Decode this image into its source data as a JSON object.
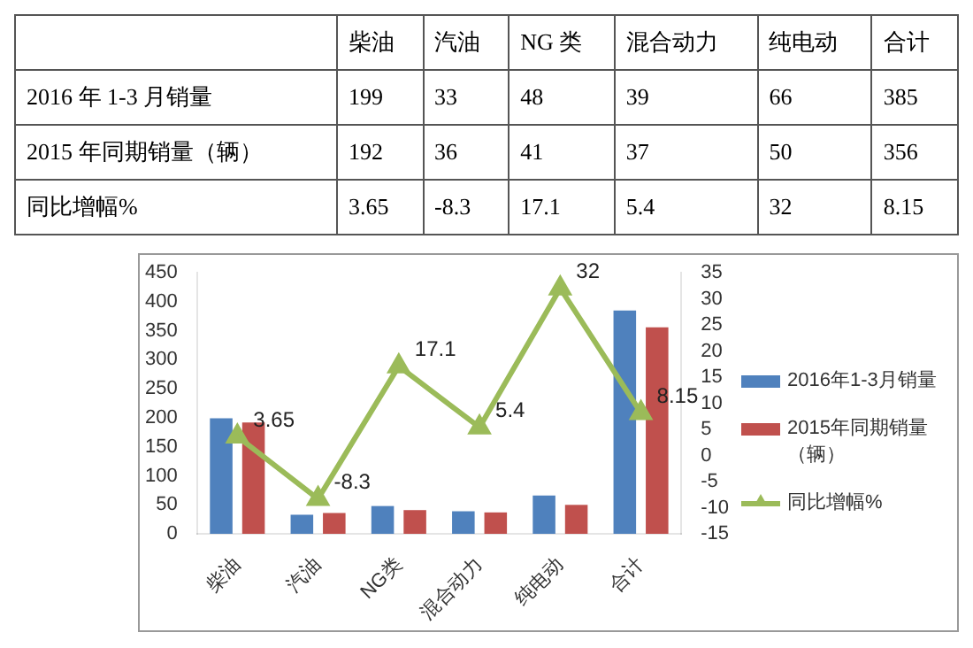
{
  "chart_data": [
    {
      "type": "other",
      "categories": [
        "柴油",
        "汽油",
        "NG 类",
        "混合动力",
        "纯电动",
        "合计"
      ],
      "series": [
        {
          "name": "2016 年 1-3 月销量",
          "values": [
            199,
            33,
            48,
            39,
            66,
            385
          ]
        },
        {
          "name": "2015 年同期销量（辆）",
          "values": [
            192,
            36,
            41,
            37,
            50,
            356
          ]
        },
        {
          "name": "同比增幅%",
          "values": [
            3.65,
            -8.3,
            17.1,
            5.4,
            32,
            8.15
          ]
        }
      ],
      "data_labels": true
    },
    {
      "type": "bar",
      "categories": [
        "柴油",
        "汽油",
        "NG类",
        "混合动力",
        "纯电动",
        "合计"
      ],
      "series": [
        {
          "name": "2016年1-3月销量",
          "color": "#4f81bd",
          "values": [
            199,
            33,
            48,
            39,
            66,
            385
          ]
        },
        {
          "name": "2015年同期销量（辆）",
          "color": "#c0504d",
          "values": [
            192,
            36,
            41,
            37,
            50,
            356
          ]
        },
        {
          "name": "同比增幅%",
          "type": "line",
          "axis": "y2",
          "color": "#9bbb59",
          "marker": "triangle",
          "values": [
            3.65,
            -8.3,
            17.1,
            5.4,
            32,
            8.15
          ],
          "value_labels": [
            "3.65",
            "-8.3",
            "17.1",
            "5.4",
            "32",
            "8.15"
          ]
        }
      ],
      "ylim": [
        0,
        450
      ],
      "yticks": [
        0,
        50,
        100,
        150,
        200,
        250,
        300,
        350,
        400,
        450
      ],
      "y2lim": [
        -15,
        35
      ],
      "y2ticks": [
        -15,
        -10,
        -5,
        0,
        5,
        10,
        15,
        20,
        25,
        30,
        35
      ],
      "legend": "right"
    }
  ]
}
